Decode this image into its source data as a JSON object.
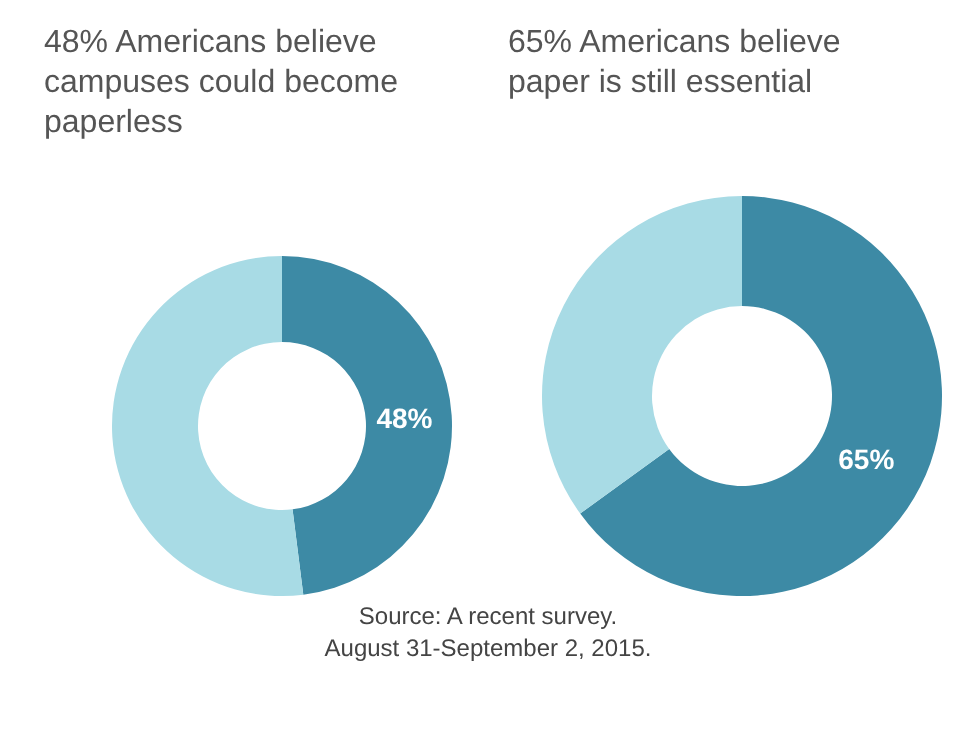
{
  "chart_data": [
    {
      "type": "donut",
      "title": "48% Americans believe campuses could become paperless",
      "categories": [
        null,
        null
      ],
      "values": [
        48,
        52
      ],
      "colors": [
        "#3d8aa5",
        "#a8dbe5"
      ],
      "value_labels": [
        "48%",
        null
      ]
    },
    {
      "type": "donut",
      "title": "65% Americans believe paper is still essential",
      "categories": [
        null,
        null
      ],
      "values": [
        65,
        35
      ],
      "colors": [
        "#3d8aa5",
        "#a8dbe5"
      ],
      "value_labels": [
        "65%",
        null
      ],
      "annotations": [
        "Source: A recent survey.",
        "August 31-September 2, 2015."
      ]
    }
  ]
}
